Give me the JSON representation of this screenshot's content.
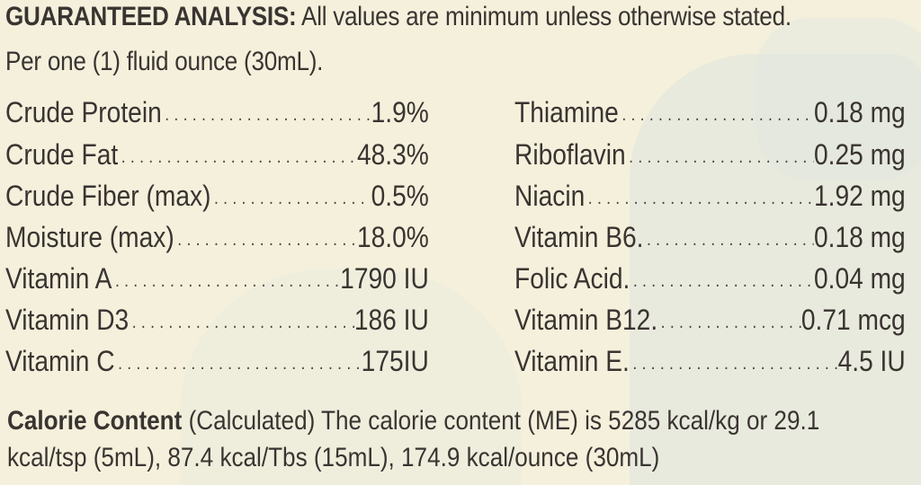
{
  "header": {
    "title_bold": "GUARANTEED ANALYSIS:",
    "title_rest": " All values are minimum unless otherwise stated.",
    "subtitle": "Per one (1) fluid ounce (30mL)."
  },
  "dots": "............................",
  "left_items": [
    {
      "name": "Crude Protein",
      "value": "1.9%"
    },
    {
      "name": "Crude Fat",
      "value": "48.3%"
    },
    {
      "name": "Crude Fiber (max)",
      "value": "0.5%"
    },
    {
      "name": "Moisture (max)",
      "value": "18.0%"
    },
    {
      "name": "Vitamin A",
      "value": "1790 IU"
    },
    {
      "name": "Vitamin D3",
      "value": "186 IU"
    },
    {
      "name": "Vitamin C",
      "value": "175IU"
    }
  ],
  "right_items": [
    {
      "name": "Thiamine",
      "value": "0.18 mg"
    },
    {
      "name": "Riboflavin",
      "value": "0.25 mg"
    },
    {
      "name": "Niacin",
      "value": "1.92 mg"
    },
    {
      "name": "Vitamin B6.",
      "value": "0.18 mg"
    },
    {
      "name": "Folic Acid.",
      "value": "0.04 mg"
    },
    {
      "name": "Vitamin B12.",
      "value": "0.71 mcg"
    },
    {
      "name": "Vitamin E.",
      "value": "4.5 IU"
    }
  ],
  "footer": {
    "bold": "Calorie Content",
    "line1_rest": " (Calculated) The calorie content (ME) is 5285 kcal/kg or 29.1",
    "line2": "kcal/tsp (5mL), 87.4 kcal/Tbs (15mL), 174.9 kcal/ounce (30mL)"
  }
}
